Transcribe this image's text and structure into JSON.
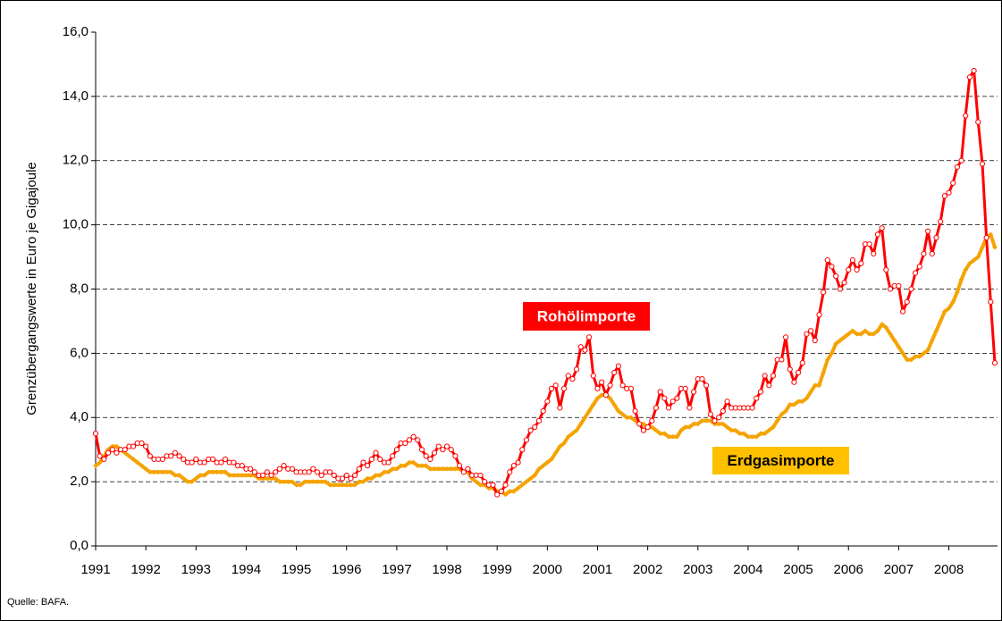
{
  "chart_data": {
    "type": "line",
    "y_label": "Grenzübergangswerte in Euro je Gigajoule",
    "source": "Quelle: BAFA.",
    "categories": [
      "1991",
      null,
      null,
      null,
      null,
      null,
      null,
      null,
      null,
      null,
      null,
      null,
      "1992",
      null,
      null,
      null,
      null,
      null,
      null,
      null,
      null,
      null,
      null,
      null,
      "1993",
      null,
      null,
      null,
      null,
      null,
      null,
      null,
      null,
      null,
      null,
      null,
      "1994",
      null,
      null,
      null,
      null,
      null,
      null,
      null,
      null,
      null,
      null,
      null,
      "1995",
      null,
      null,
      null,
      null,
      null,
      null,
      null,
      null,
      null,
      null,
      null,
      "1996",
      null,
      null,
      null,
      null,
      null,
      null,
      null,
      null,
      null,
      null,
      null,
      "1997",
      null,
      null,
      null,
      null,
      null,
      null,
      null,
      null,
      null,
      null,
      null,
      "1998",
      null,
      null,
      null,
      null,
      null,
      null,
      null,
      null,
      null,
      null,
      null,
      "1999",
      null,
      null,
      null,
      null,
      null,
      null,
      null,
      null,
      null,
      null,
      null,
      "2000",
      null,
      null,
      null,
      null,
      null,
      null,
      null,
      null,
      null,
      null,
      null,
      "2001",
      null,
      null,
      null,
      null,
      null,
      null,
      null,
      null,
      null,
      null,
      null,
      "2002",
      null,
      null,
      null,
      null,
      null,
      null,
      null,
      null,
      null,
      null,
      null,
      "2003",
      null,
      null,
      null,
      null,
      null,
      null,
      null,
      null,
      null,
      null,
      null,
      "2004",
      null,
      null,
      null,
      null,
      null,
      null,
      null,
      null,
      null,
      null,
      null,
      "2005",
      null,
      null,
      null,
      null,
      null,
      null,
      null,
      null,
      null,
      null,
      null,
      "2006",
      null,
      null,
      null,
      null,
      null,
      null,
      null,
      null,
      null,
      null,
      null,
      "2007",
      null,
      null,
      null,
      null,
      null,
      null,
      null,
      null,
      null,
      null,
      null,
      "2008",
      null,
      null,
      null,
      null,
      null,
      null,
      null,
      null,
      null,
      null,
      null
    ],
    "series": [
      {
        "name": "Rohölimporte",
        "color": "#ff0000",
        "marker": "circle",
        "values": [
          3.5,
          2.8,
          2.7,
          2.9,
          3.0,
          2.9,
          3.0,
          3.0,
          3.1,
          3.1,
          3.2,
          3.2,
          3.1,
          2.8,
          2.7,
          2.7,
          2.7,
          2.8,
          2.8,
          2.9,
          2.8,
          2.7,
          2.6,
          2.6,
          2.7,
          2.6,
          2.6,
          2.7,
          2.7,
          2.6,
          2.6,
          2.7,
          2.6,
          2.6,
          2.5,
          2.5,
          2.4,
          2.4,
          2.3,
          2.2,
          2.2,
          2.3,
          2.2,
          2.3,
          2.4,
          2.5,
          2.4,
          2.4,
          2.3,
          2.3,
          2.3,
          2.3,
          2.4,
          2.3,
          2.2,
          2.3,
          2.3,
          2.2,
          2.1,
          2.1,
          2.2,
          2.1,
          2.2,
          2.4,
          2.6,
          2.5,
          2.7,
          2.9,
          2.7,
          2.6,
          2.6,
          2.8,
          3.0,
          3.2,
          3.2,
          3.3,
          3.4,
          3.3,
          3.0,
          2.8,
          2.7,
          2.9,
          3.1,
          3.0,
          3.1,
          3.0,
          2.8,
          2.5,
          2.3,
          2.4,
          2.2,
          2.2,
          2.2,
          2.0,
          1.9,
          1.9,
          1.6,
          1.7,
          1.9,
          2.3,
          2.5,
          2.6,
          3.0,
          3.3,
          3.6,
          3.7,
          3.9,
          4.2,
          4.5,
          4.9,
          5.0,
          4.3,
          4.9,
          5.3,
          5.2,
          5.5,
          6.2,
          6.1,
          6.5,
          5.3,
          4.9,
          5.1,
          4.7,
          5.0,
          5.4,
          5.6,
          5.0,
          4.9,
          4.9,
          4.2,
          3.8,
          3.6,
          3.7,
          3.9,
          4.3,
          4.8,
          4.6,
          4.3,
          4.5,
          4.6,
          4.9,
          4.9,
          4.3,
          4.8,
          5.2,
          5.2,
          5.0,
          4.1,
          3.9,
          4.0,
          4.2,
          4.5,
          4.3,
          4.3,
          4.3,
          4.3,
          4.3,
          4.3,
          4.6,
          4.8,
          5.3,
          5.0,
          5.3,
          5.8,
          5.8,
          6.5,
          5.5,
          5.1,
          5.4,
          5.7,
          6.6,
          6.7,
          6.4,
          7.2,
          7.9,
          8.9,
          8.7,
          8.4,
          8.0,
          8.2,
          8.6,
          8.9,
          8.6,
          8.8,
          9.4,
          9.4,
          9.1,
          9.7,
          9.9,
          8.6,
          8.0,
          8.1,
          8.1,
          7.3,
          7.6,
          8.0,
          8.5,
          8.7,
          9.1,
          9.8,
          9.1,
          9.6,
          10.1,
          10.9,
          11.0,
          11.3,
          11.8,
          12.0,
          13.4,
          14.6,
          14.8,
          13.2,
          11.9,
          9.6,
          7.6,
          5.7
        ]
      },
      {
        "name": "Erdgasimporte",
        "color": "#f5a300",
        "marker": "diamond",
        "values": [
          2.5,
          2.6,
          2.8,
          3.0,
          3.1,
          3.1,
          3.0,
          2.9,
          2.8,
          2.7,
          2.6,
          2.5,
          2.4,
          2.3,
          2.3,
          2.3,
          2.3,
          2.3,
          2.3,
          2.2,
          2.2,
          2.1,
          2.0,
          2.0,
          2.1,
          2.2,
          2.2,
          2.3,
          2.3,
          2.3,
          2.3,
          2.3,
          2.2,
          2.2,
          2.2,
          2.2,
          2.2,
          2.2,
          2.2,
          2.1,
          2.1,
          2.1,
          2.1,
          2.1,
          2.0,
          2.0,
          2.0,
          2.0,
          1.9,
          1.9,
          2.0,
          2.0,
          2.0,
          2.0,
          2.0,
          2.0,
          1.9,
          1.9,
          1.9,
          1.9,
          1.9,
          1.9,
          1.9,
          2.0,
          2.0,
          2.1,
          2.1,
          2.2,
          2.2,
          2.3,
          2.3,
          2.4,
          2.4,
          2.5,
          2.5,
          2.6,
          2.6,
          2.5,
          2.5,
          2.5,
          2.4,
          2.4,
          2.4,
          2.4,
          2.4,
          2.4,
          2.4,
          2.4,
          2.3,
          2.3,
          2.1,
          2.0,
          1.9,
          1.9,
          1.8,
          1.8,
          1.7,
          1.7,
          1.6,
          1.7,
          1.7,
          1.8,
          1.9,
          2.0,
          2.1,
          2.2,
          2.4,
          2.5,
          2.6,
          2.7,
          2.9,
          3.1,
          3.2,
          3.4,
          3.5,
          3.6,
          3.8,
          4.0,
          4.2,
          4.4,
          4.6,
          4.7,
          4.7,
          4.6,
          4.4,
          4.2,
          4.1,
          4.0,
          4.0,
          3.9,
          3.8,
          3.8,
          3.7,
          3.7,
          3.6,
          3.5,
          3.5,
          3.4,
          3.4,
          3.4,
          3.6,
          3.7,
          3.7,
          3.8,
          3.8,
          3.9,
          3.9,
          3.9,
          3.8,
          3.8,
          3.8,
          3.7,
          3.6,
          3.6,
          3.5,
          3.5,
          3.4,
          3.4,
          3.4,
          3.5,
          3.5,
          3.6,
          3.7,
          3.9,
          4.1,
          4.2,
          4.4,
          4.4,
          4.5,
          4.5,
          4.6,
          4.8,
          5.0,
          5.0,
          5.4,
          5.8,
          6.0,
          6.3,
          6.4,
          6.5,
          6.6,
          6.7,
          6.6,
          6.6,
          6.7,
          6.6,
          6.6,
          6.7,
          6.9,
          6.8,
          6.6,
          6.4,
          6.2,
          6.0,
          5.8,
          5.8,
          5.9,
          5.9,
          6.0,
          6.1,
          6.4,
          6.7,
          7.0,
          7.3,
          7.4,
          7.6,
          7.9,
          8.3,
          8.6,
          8.8,
          8.9,
          9.0,
          9.3,
          9.6,
          9.7,
          9.3
        ]
      }
    ],
    "ylim": [
      0,
      16
    ],
    "yticks": [
      {
        "value": 0,
        "label": "0,0"
      },
      {
        "value": 2,
        "label": "2,0"
      },
      {
        "value": 4,
        "label": "4,0"
      },
      {
        "value": 6,
        "label": "6,0"
      },
      {
        "value": 8,
        "label": "8,0"
      },
      {
        "value": 10,
        "label": "10,0"
      },
      {
        "value": 12,
        "label": "12,0"
      },
      {
        "value": 14,
        "label": "14,0"
      },
      {
        "value": 16,
        "label": "16,0"
      }
    ],
    "grid": true
  }
}
